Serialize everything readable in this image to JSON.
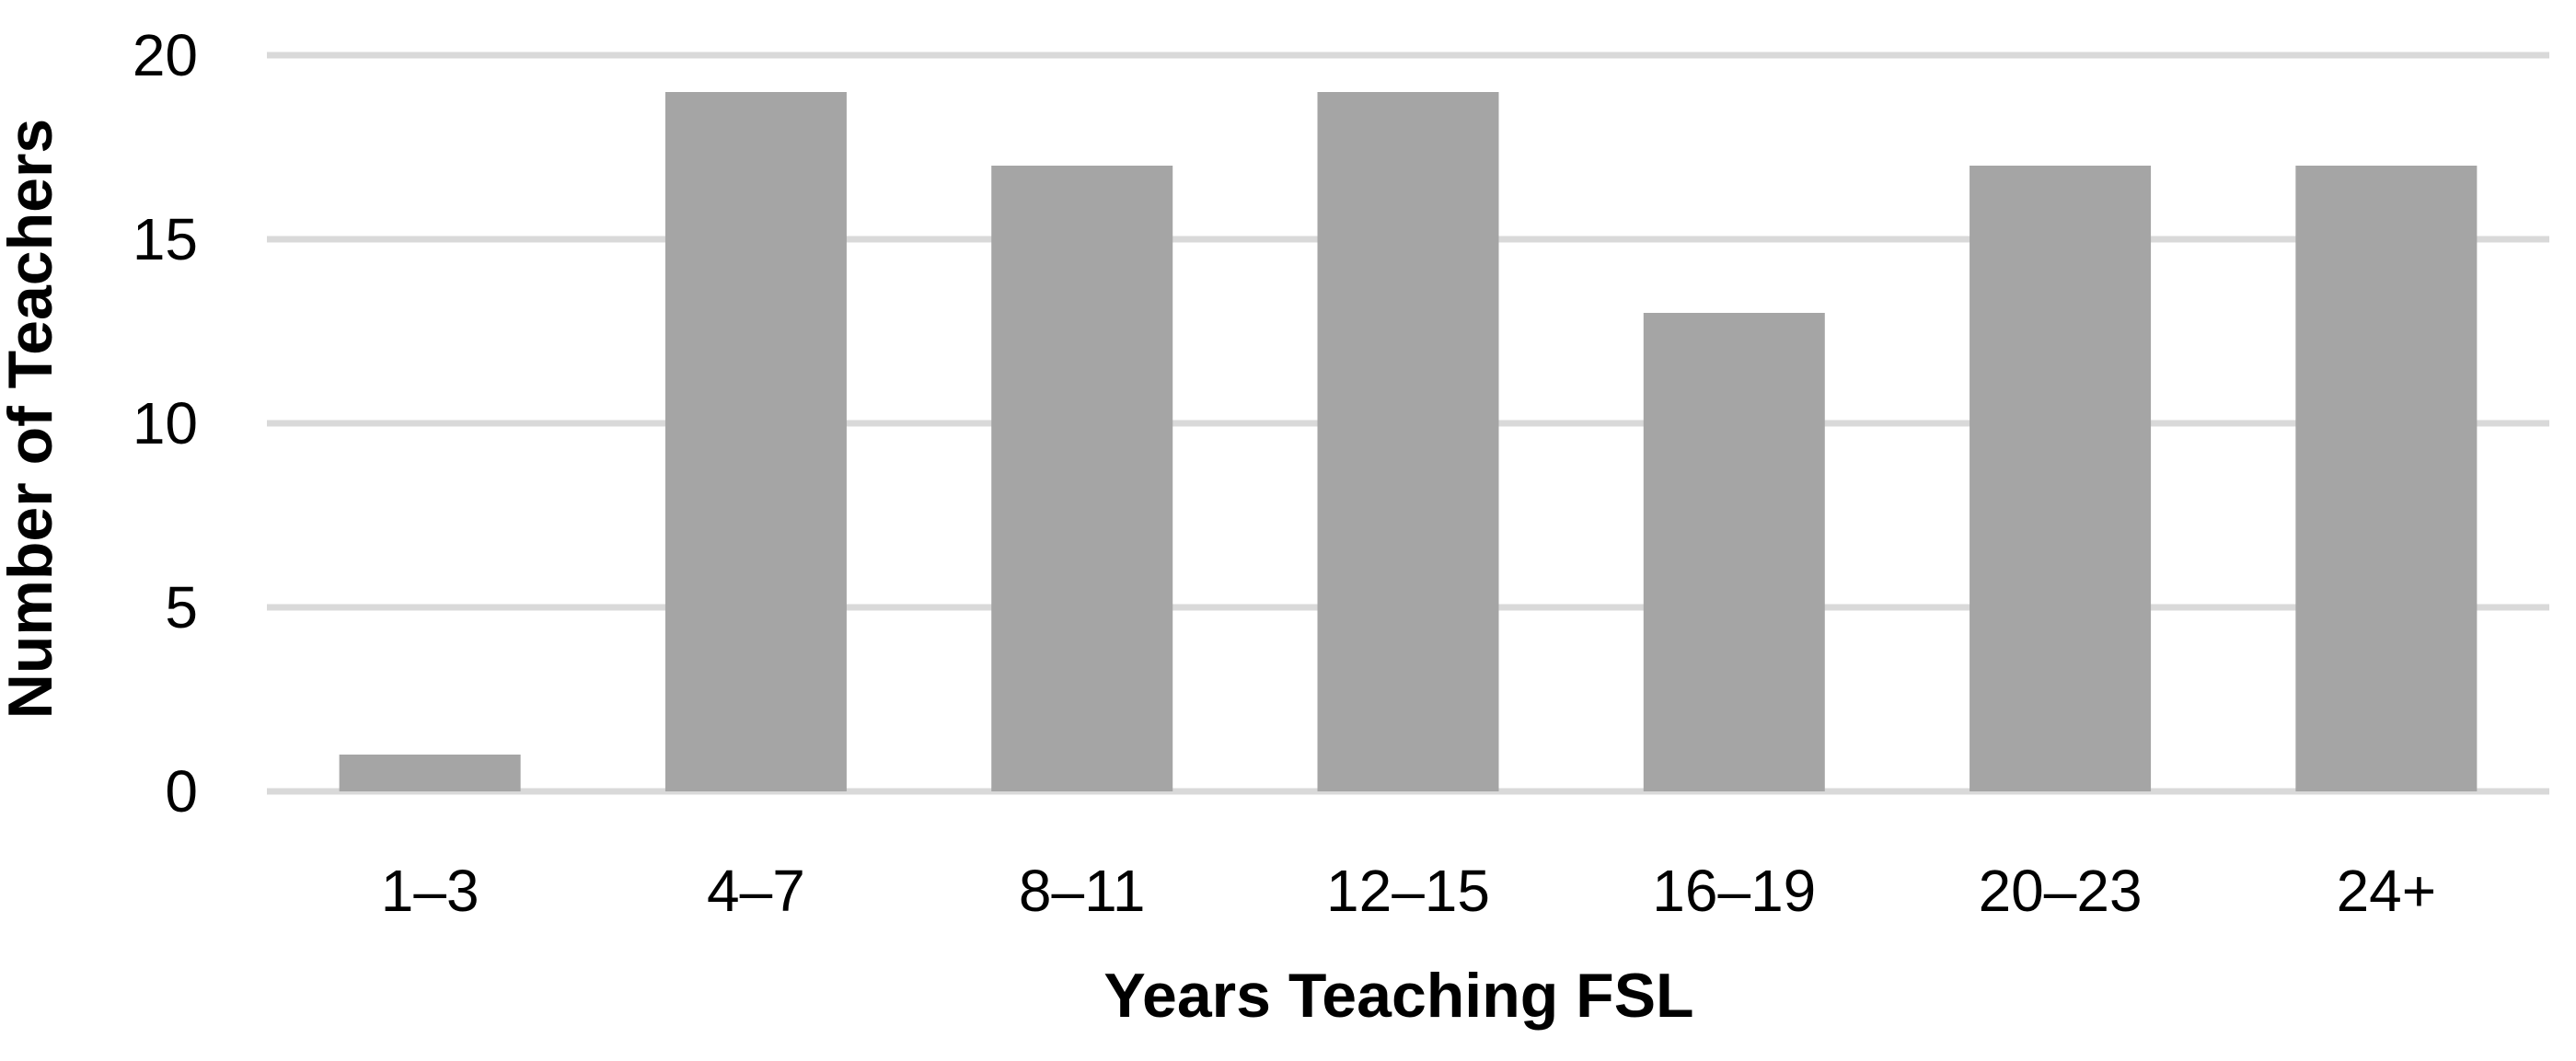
{
  "chart_data": {
    "type": "bar",
    "title": "",
    "xlabel": "Years Teaching FSL",
    "ylabel": "Number of Teachers",
    "categories": [
      "1–3",
      "4–7",
      "8–11",
      "12–15",
      "16–19",
      "20–23",
      "24+"
    ],
    "values": [
      1,
      19,
      17,
      19,
      13,
      17,
      17
    ],
    "ylim": [
      0,
      20
    ],
    "yticks": [
      "0",
      "5",
      "10",
      "15",
      "20"
    ],
    "grid": true,
    "legend": "none",
    "colors": {
      "bar": "#a5a5a5",
      "grid": "#d9d9d9",
      "text": "#000000",
      "background": "#ffffff"
    }
  }
}
